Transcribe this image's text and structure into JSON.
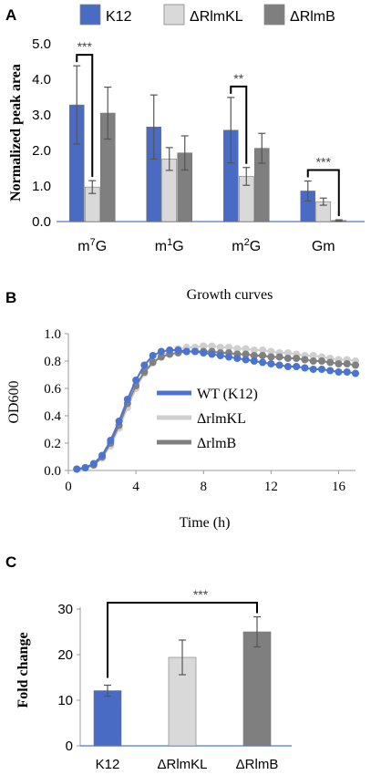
{
  "chart_data": [
    {
      "panel": "A",
      "type": "bar",
      "ylabel": "Normalized peak area",
      "ylim": [
        0,
        5
      ],
      "yticks": [
        "0.0",
        "1.0",
        "2.0",
        "3.0",
        "4.0",
        "5.0"
      ],
      "categories": [
        {
          "base": "m",
          "sup": "7",
          "tail": "G"
        },
        {
          "base": "m",
          "sup": "1",
          "tail": "G"
        },
        {
          "base": "m",
          "sup": "2",
          "tail": "G"
        },
        {
          "base": "Gm",
          "sup": "",
          "tail": ""
        }
      ],
      "series": [
        {
          "name": "K12",
          "color": "#4a6bc4",
          "values": [
            3.28,
            2.66,
            2.57,
            0.86
          ],
          "errors": [
            1.1,
            0.9,
            0.92,
            0.28
          ]
        },
        {
          "name": "ΔRlmKL",
          "color": "#d9d9d9",
          "values": [
            0.97,
            1.76,
            1.27,
            0.56
          ],
          "errors": [
            0.18,
            0.32,
            0.25,
            0.1
          ]
        },
        {
          "name": "ΔRlmB",
          "color": "#7f7f7f",
          "values": [
            3.05,
            1.93,
            2.06,
            0.03
          ],
          "errors": [
            0.73,
            0.48,
            0.42,
            0.02
          ]
        }
      ],
      "significance": [
        {
          "category": 0,
          "from": 0,
          "to": 1,
          "label": "***"
        },
        {
          "category": 2,
          "from": 0,
          "to": 1,
          "label": "**"
        },
        {
          "category": 3,
          "from": 0,
          "to": 2,
          "label": "***"
        }
      ],
      "legend": "top"
    },
    {
      "panel": "B",
      "type": "line",
      "title": "Growth curves",
      "xlabel": "Time (h)",
      "ylabel": "OD600",
      "xlim": [
        0,
        17
      ],
      "ylim": [
        0,
        1
      ],
      "xticks": [
        "0",
        "4",
        "8",
        "12",
        "16"
      ],
      "yticks": [
        "0.0",
        "0.2",
        "0.4",
        "0.6",
        "0.8",
        "1.0"
      ],
      "x": [
        0.5,
        1,
        1.5,
        2,
        2.5,
        3,
        3.5,
        4,
        4.5,
        5,
        5.5,
        6,
        6.5,
        7,
        7.5,
        8,
        8.5,
        9,
        9.5,
        10,
        10.5,
        11,
        11.5,
        12,
        12.5,
        13,
        13.5,
        14,
        14.5,
        15,
        15.5,
        16,
        16.5,
        17
      ],
      "series": [
        {
          "name": "WT (K12)",
          "color": "#4a74d0",
          "values": [
            0.01,
            0.02,
            0.05,
            0.11,
            0.22,
            0.36,
            0.52,
            0.66,
            0.77,
            0.84,
            0.87,
            0.88,
            0.88,
            0.87,
            0.87,
            0.86,
            0.85,
            0.84,
            0.83,
            0.82,
            0.81,
            0.8,
            0.79,
            0.78,
            0.77,
            0.76,
            0.76,
            0.75,
            0.74,
            0.74,
            0.73,
            0.72,
            0.72,
            0.71
          ]
        },
        {
          "name": "ΔrlmKL",
          "color": "#cfcfcf",
          "values": [
            0.01,
            0.02,
            0.04,
            0.09,
            0.18,
            0.31,
            0.46,
            0.6,
            0.71,
            0.79,
            0.84,
            0.87,
            0.89,
            0.9,
            0.9,
            0.91,
            0.91,
            0.9,
            0.9,
            0.89,
            0.89,
            0.88,
            0.88,
            0.87,
            0.86,
            0.86,
            0.85,
            0.84,
            0.84,
            0.83,
            0.82,
            0.81,
            0.81,
            0.8
          ]
        },
        {
          "name": "ΔrlmB",
          "color": "#808080",
          "values": [
            0.01,
            0.02,
            0.04,
            0.1,
            0.2,
            0.33,
            0.49,
            0.62,
            0.72,
            0.79,
            0.83,
            0.85,
            0.86,
            0.87,
            0.87,
            0.87,
            0.87,
            0.86,
            0.86,
            0.85,
            0.85,
            0.84,
            0.84,
            0.83,
            0.83,
            0.82,
            0.82,
            0.81,
            0.8,
            0.8,
            0.79,
            0.78,
            0.78,
            0.77
          ]
        }
      ],
      "legend": "center-right"
    },
    {
      "panel": "C",
      "type": "bar",
      "ylabel": "Fold change",
      "ylim": [
        0,
        30
      ],
      "yticks": [
        "0",
        "10",
        "20",
        "30"
      ],
      "categories": [
        "K12",
        "ΔRlmKL",
        "ΔRlmB"
      ],
      "colors": [
        "#4a6bc4",
        "#d9d9d9",
        "#7f7f7f"
      ],
      "values": [
        12.1,
        19.4,
        25.0
      ],
      "errors": [
        1.2,
        3.8,
        3.3
      ],
      "significance": [
        {
          "from": 0,
          "to": 2,
          "label": "***"
        }
      ]
    }
  ],
  "panels": {
    "a": "A",
    "b": "B",
    "c": "C"
  }
}
